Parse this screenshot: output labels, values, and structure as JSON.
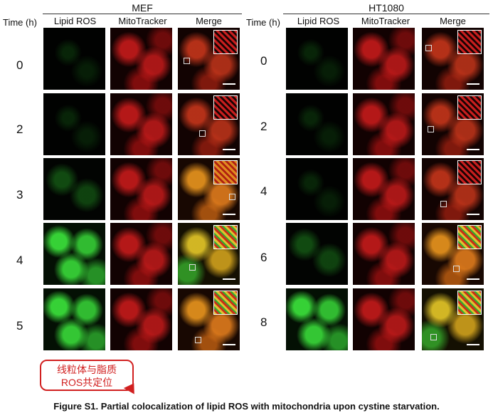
{
  "figure": {
    "left_group": {
      "title": "MEF",
      "time_label": "Time (h)",
      "columns": [
        "Lipid ROS",
        "MitoTracker",
        "Merge"
      ],
      "times": [
        "0",
        "2",
        "3",
        "4",
        "5"
      ]
    },
    "right_group": {
      "title": "HT1080",
      "time_label": "Time (h)",
      "columns": [
        "Lipid ROS",
        "MitoTracker",
        "Merge"
      ],
      "times": [
        "0",
        "2",
        "4",
        "6",
        "8"
      ]
    },
    "colors": {
      "lipid_ros": "#2fc42f",
      "mitotracker": "#d41e1e",
      "merge": "#e0a020"
    }
  },
  "callout": {
    "line1": "线粒体与脂质",
    "line2": "ROS共定位",
    "color": "#d12020"
  },
  "caption": "Figure S1. Partial colocalization of lipid ROS with mitochondria upon cystine starvation."
}
